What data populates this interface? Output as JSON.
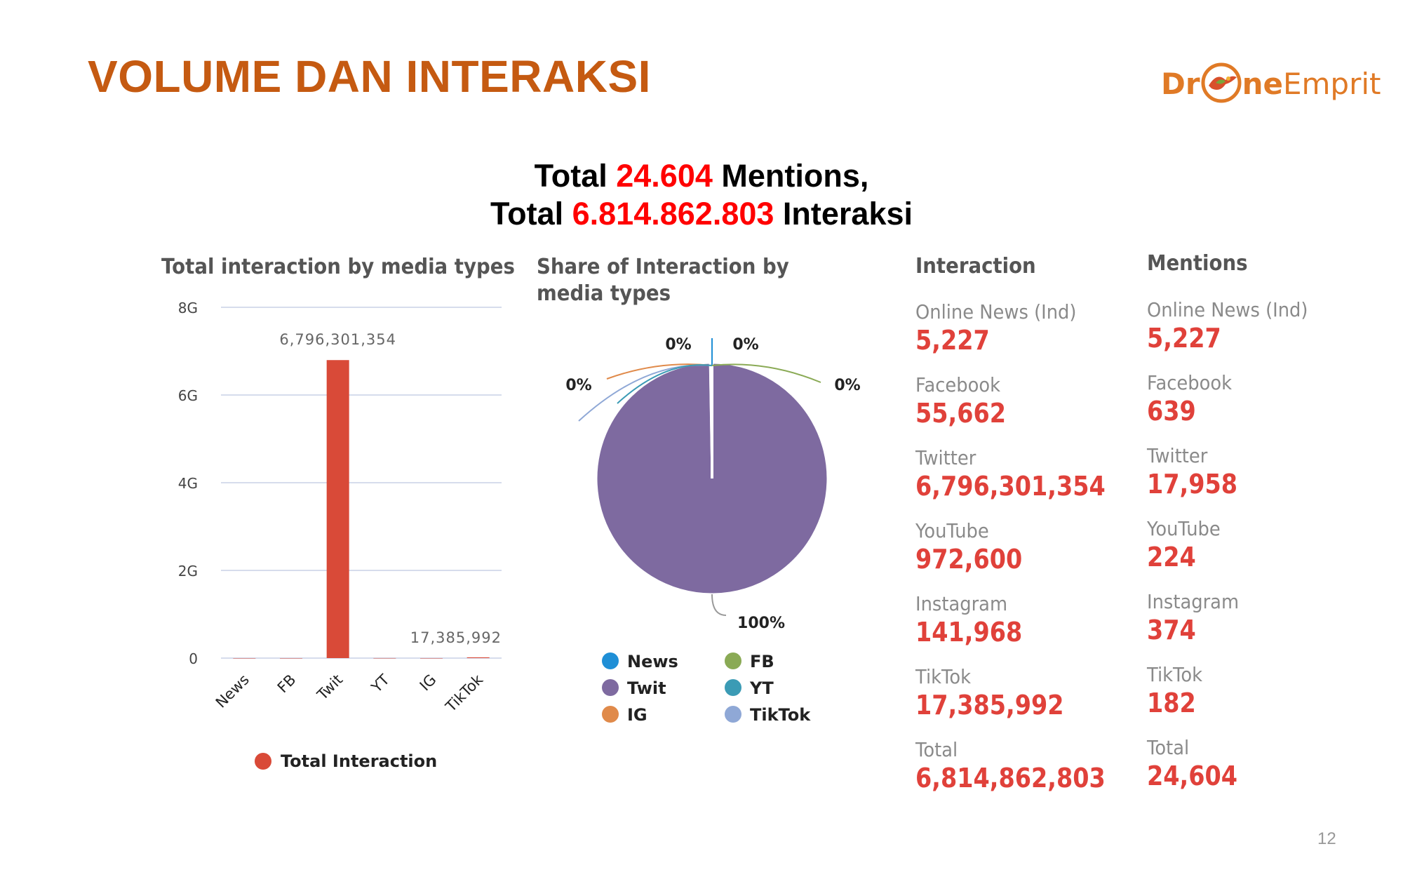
{
  "slide": {
    "title": "VOLUME DAN INTERAKSI",
    "page_number": "12",
    "logo": {
      "brand": "DroneEmprit",
      "part1": "Dr",
      "part2": "ne",
      "part3": "Emprit",
      "icon": "drone-bird-logo-icon"
    }
  },
  "headline": {
    "line1_prefix": "Total ",
    "line1_value": "24.604",
    "line1_suffix": " Mentions,",
    "line2_prefix": "Total ",
    "line2_value": "6.814.862.803",
    "line2_suffix": " Interaksi"
  },
  "colors": {
    "title": "#c55a11",
    "highlight": "#ff0000",
    "value": "#e0413a",
    "bar": "#d94a38",
    "twit_slice": "#7e6aa0",
    "news": "#1f8fd6",
    "fb": "#8aaa55",
    "yt": "#3b9bb5",
    "ig": "#e08a4a",
    "tiktok": "#8fa8d6"
  },
  "chart_data": [
    {
      "type": "bar",
      "title": "Total interaction by media types",
      "categories": [
        "News",
        "FB",
        "Twit",
        "YT",
        "IG",
        "TikTok"
      ],
      "series": [
        {
          "name": "Total Interaction",
          "values": [
            5227,
            55662,
            6796301354,
            972600,
            141968,
            17385992
          ]
        }
      ],
      "data_labels": [
        {
          "category": "Twit",
          "text": "6,796,301,354"
        },
        {
          "category": "TikTok",
          "text": "17,385,992"
        }
      ],
      "ylim": [
        0,
        8000000000
      ],
      "yticks": [
        {
          "value": 0,
          "label": "0"
        },
        {
          "value": 2000000000,
          "label": "2G"
        },
        {
          "value": 4000000000,
          "label": "4G"
        },
        {
          "value": 6000000000,
          "label": "6G"
        },
        {
          "value": 8000000000,
          "label": "8G"
        }
      ],
      "grid": true,
      "legend_position": "bottom"
    },
    {
      "type": "pie",
      "title": "Share of Interaction by media types",
      "slices": [
        {
          "name": "News",
          "value": 5227,
          "label": "0%"
        },
        {
          "name": "FB",
          "value": 55662,
          "label": "0%"
        },
        {
          "name": "Twit",
          "value": 6796301354,
          "label": "100%"
        },
        {
          "name": "YT",
          "value": 972600,
          "label": "0%"
        },
        {
          "name": "IG",
          "value": 141968,
          "label": "0%"
        },
        {
          "name": "TikTok",
          "value": 17385992,
          "label": "0%"
        }
      ],
      "legend_position": "bottom"
    },
    {
      "type": "table",
      "title": "Interaction",
      "rows": [
        {
          "label": "Online News (Ind)",
          "value": "5,227"
        },
        {
          "label": "Facebook",
          "value": "55,662"
        },
        {
          "label": "Twitter",
          "value": "6,796,301,354"
        },
        {
          "label": "YouTube",
          "value": "972,600"
        },
        {
          "label": "Instagram",
          "value": "141,968"
        },
        {
          "label": "TikTok",
          "value": "17,385,992"
        },
        {
          "label": "Total",
          "value": "6,814,862,803"
        }
      ]
    },
    {
      "type": "table",
      "title": "Mentions",
      "rows": [
        {
          "label": "Online News (Ind)",
          "value": "5,227"
        },
        {
          "label": "Facebook",
          "value": "639"
        },
        {
          "label": "Twitter",
          "value": "17,958"
        },
        {
          "label": "YouTube",
          "value": "224"
        },
        {
          "label": "Instagram",
          "value": "374"
        },
        {
          "label": "TikTok",
          "value": "182"
        },
        {
          "label": "Total",
          "value": "24,604"
        }
      ]
    }
  ]
}
